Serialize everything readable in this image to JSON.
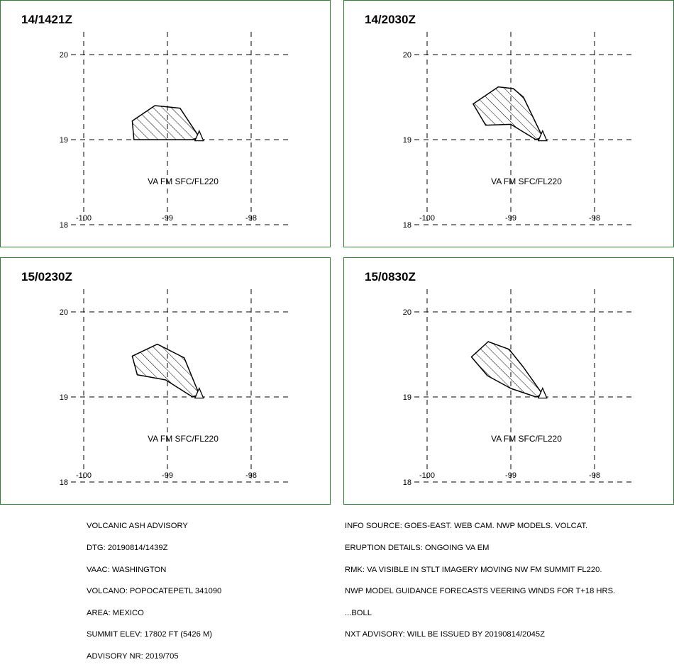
{
  "panels": [
    {
      "time": "14/1421Z",
      "label": "VA FM SFC/FL220",
      "polygon": [
        [
          -99.42,
          19.22
        ],
        [
          -99.15,
          19.4
        ],
        [
          -98.85,
          19.37
        ],
        [
          -98.62,
          19.03
        ],
        [
          -98.7,
          19.0
        ],
        [
          -99.4,
          19.0
        ]
      ]
    },
    {
      "time": "14/2030Z",
      "label": "VA FM SFC/FL220",
      "polygon": [
        [
          -99.45,
          19.42
        ],
        [
          -99.15,
          19.62
        ],
        [
          -98.97,
          19.6
        ],
        [
          -98.85,
          19.5
        ],
        [
          -98.62,
          19.03
        ],
        [
          -98.7,
          19.0
        ],
        [
          -99.0,
          19.18
        ],
        [
          -99.3,
          19.17
        ]
      ]
    },
    {
      "time": "15/0230Z",
      "label": "VA FM SFC/FL220",
      "polygon": [
        [
          -99.42,
          19.48
        ],
        [
          -99.12,
          19.62
        ],
        [
          -98.8,
          19.46
        ],
        [
          -98.62,
          19.03
        ],
        [
          -98.7,
          19.0
        ],
        [
          -99.02,
          19.2
        ],
        [
          -99.36,
          19.26
        ]
      ]
    },
    {
      "time": "15/0830Z",
      "label": "VA FM SFC/FL220",
      "polygon": [
        [
          -99.47,
          19.47
        ],
        [
          -99.27,
          19.65
        ],
        [
          -99.02,
          19.56
        ],
        [
          -98.85,
          19.35
        ],
        [
          -98.62,
          19.03
        ],
        [
          -98.7,
          19.0
        ],
        [
          -99.0,
          19.1
        ],
        [
          -99.28,
          19.25
        ]
      ]
    }
  ],
  "axes": {
    "lon_ticks": [
      -100,
      -99,
      -98
    ],
    "lat_ticks": [
      20,
      19,
      18
    ],
    "lon_labels": [
      "-100",
      "-99",
      "-98"
    ],
    "lat_labels": [
      "20",
      "19",
      "18"
    ]
  },
  "volcano": {
    "lon": -98.62,
    "lat": 19.02
  },
  "footer": {
    "left": [
      "VOLCANIC ASH ADVISORY",
      "DTG: 20190814/1439Z",
      "VAAC: WASHINGTON",
      "VOLCANO: POPOCATEPETL 341090",
      "AREA: MEXICO",
      "SUMMIT ELEV: 17802 FT (5426 M)",
      "ADVISORY NR: 2019/705"
    ],
    "right": [
      "INFO SOURCE: GOES-EAST. WEB CAM. NWP MODELS. VOLCAT.",
      "ERUPTION DETAILS: ONGOING VA EM",
      "RMK: VA VISIBLE IN STLT IMAGERY MOVING NW FM SUMMIT FL220.",
      "NWP MODEL GUIDANCE FORECASTS VEERING WINDS FOR T+18 HRS.",
      "...BOLL",
      "NXT ADVISORY: WILL BE ISSUED BY 20190814/2045Z"
    ]
  },
  "colors": {
    "frame": "#2e7d32",
    "grid": "#000000",
    "ash": "#000000"
  }
}
